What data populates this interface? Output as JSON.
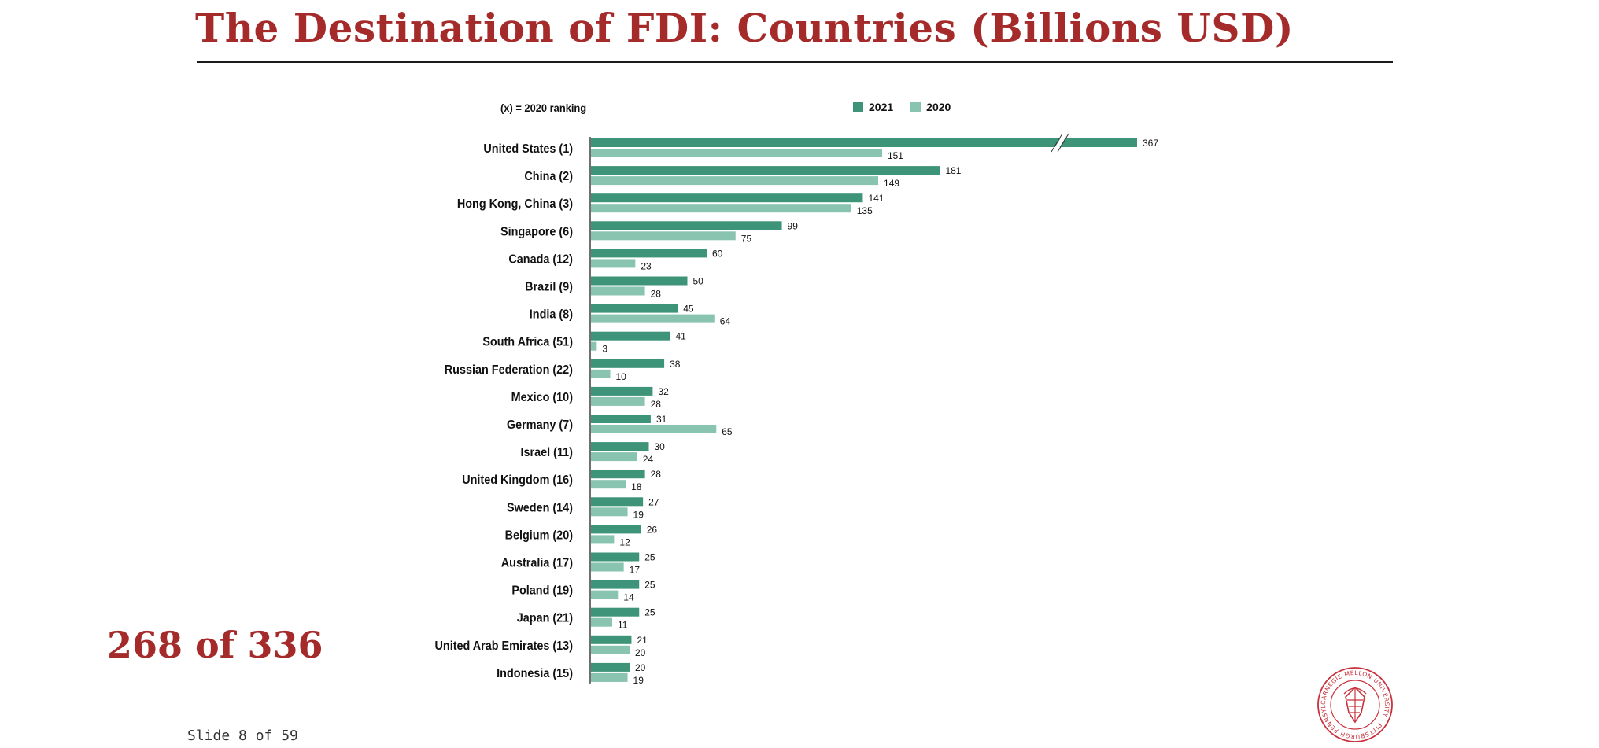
{
  "slide": {
    "title": "The Destination of FDI: Countries (Billions USD)",
    "page_counter": "268 of 336",
    "slide_number": "Slide 8 of 59",
    "title_color": "#a52a2a"
  },
  "logo": {
    "icon": "carnegie-mellon-seal-icon",
    "text": "CARNEGIE MELLON UNIVERSITY · PITTSBURGH PENNSYLVANIA 1900"
  },
  "chart_data": {
    "type": "bar",
    "orientation": "horizontal",
    "note": "(x) = 2020  ranking",
    "categories": [
      "United States (1)",
      "China (2)",
      "Hong Kong, China (3)",
      "Singapore (6)",
      "Canada (12)",
      "Brazil (9)",
      "India (8)",
      "South Africa (51)",
      "Russian Federation (22)",
      "Mexico (10)",
      "Germany (7)",
      "Israel (11)",
      "United Kingdom (16)",
      "Sweden (14)",
      "Belgium (20)",
      "Australia (17)",
      "Poland (19)",
      "Japan (21)",
      "United Arab Emirates (13)",
      "Indonesia (15)"
    ],
    "series": [
      {
        "name": "2021",
        "color": "#3d9478",
        "values": [
          367,
          181,
          141,
          99,
          60,
          50,
          45,
          41,
          38,
          32,
          31,
          30,
          28,
          27,
          26,
          25,
          25,
          25,
          21,
          20
        ]
      },
      {
        "name": "2020",
        "color": "#88c4b0",
        "values": [
          151,
          149,
          135,
          75,
          23,
          28,
          64,
          3,
          10,
          28,
          65,
          24,
          18,
          19,
          12,
          17,
          14,
          11,
          20,
          19
        ]
      }
    ],
    "axis_break": {
      "category": "United States (1)",
      "series": "2021"
    },
    "legend_position": "top",
    "grid": false
  }
}
